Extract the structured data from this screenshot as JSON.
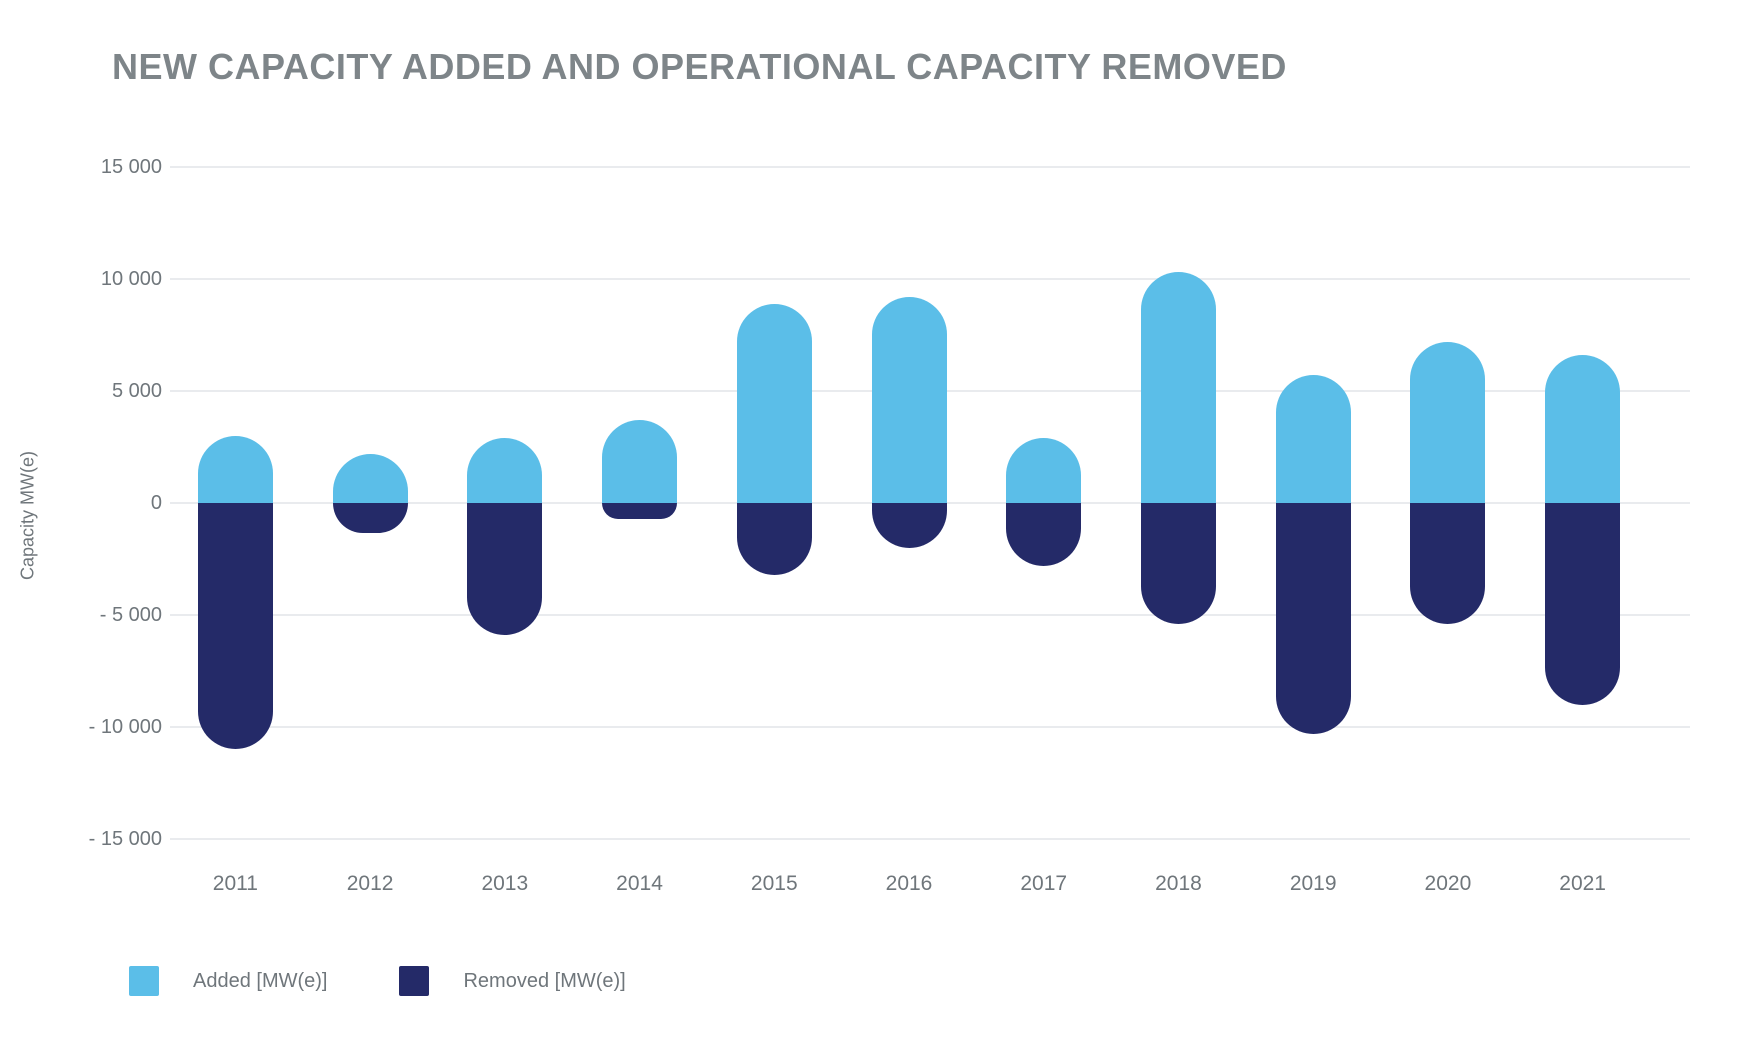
{
  "title": "NEW CAPACITY ADDED AND OPERATIONAL CAPACITY REMOVED",
  "colors": {
    "added": "#5bbee8",
    "removed": "#242a68",
    "title_text": "#7e8589",
    "axis_text": "#6f767b",
    "gridline": "#e9ebee",
    "background": "#ffffff"
  },
  "chart_data": {
    "type": "bar",
    "stacking": "diverging",
    "title": "NEW CAPACITY ADDED AND OPERATIONAL CAPACITY REMOVED",
    "xlabel": "",
    "ylabel": "Capacity MW(e)",
    "ylim": [
      -15000,
      15000
    ],
    "ytick_step": 5000,
    "grid": true,
    "legend_position": "bottom-left",
    "categories": [
      "2011",
      "2012",
      "2013",
      "2014",
      "2015",
      "2016",
      "2017",
      "2018",
      "2019",
      "2020",
      "2021"
    ],
    "series": [
      {
        "name": "Added [MW(e)]",
        "color": "#5bbee8",
        "values": [
          3000,
          2200,
          2900,
          3700,
          8900,
          9200,
          2900,
          10300,
          5700,
          7200,
          6600
        ]
      },
      {
        "name": "Removed [MW(e)]",
        "color": "#242a68",
        "values": [
          -11000,
          -1350,
          -5900,
          -700,
          -3200,
          -2000,
          -2800,
          -5400,
          -10300,
          -5400,
          -9000
        ]
      }
    ],
    "yticks": [
      {
        "value": 15000,
        "label": "15 000"
      },
      {
        "value": 10000,
        "label": "10 000"
      },
      {
        "value": 5000,
        "label": "5 000"
      },
      {
        "value": 0,
        "label": "0"
      },
      {
        "value": -5000,
        "label": "- 5 000"
      },
      {
        "value": -10000,
        "label": "- 10 000"
      },
      {
        "value": -15000,
        "label": "- 15 000"
      }
    ]
  },
  "legend": {
    "items": [
      {
        "label": "Added [MW(e)]",
        "color": "#5bbee8"
      },
      {
        "label": "Removed [MW(e)]",
        "color": "#242a68"
      }
    ]
  }
}
